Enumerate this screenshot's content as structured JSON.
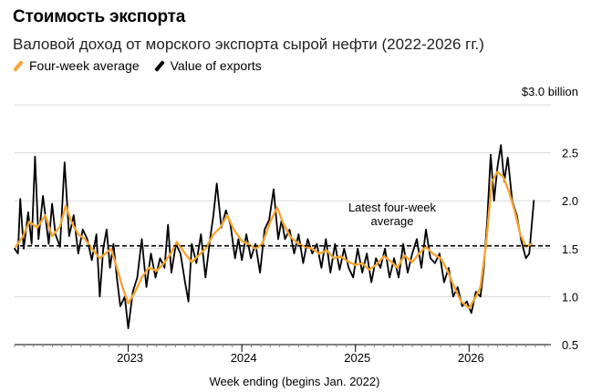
{
  "header": {
    "title": "Стоимость экспорта",
    "subtitle": "Валовой доход от морского экспорта сырой нефти (2022-2026 гг.)"
  },
  "colors": {
    "avg": "#f5a533",
    "value": "#000000",
    "grid": "#d9d9d9",
    "axis": "#000000"
  },
  "chart_data": {
    "type": "line",
    "title": "Стоимость экспорта",
    "subtitle": "Валовой доход от морского экспорта сырой нефти (2022-2026 гг.)",
    "xlabel": "Week ending (begins Jan. 2022)",
    "unit_label": "$3.0 billion",
    "ylabel": "",
    "ylim": [
      0.5,
      3.0
    ],
    "xlim": [
      2022.0,
      2026.72
    ],
    "yticks": [
      {
        "value": 3.0,
        "label": "3.0"
      },
      {
        "value": 2.5,
        "label": "2.5"
      },
      {
        "value": 2.0,
        "label": "2.0"
      },
      {
        "value": 1.5,
        "label": "1.5"
      },
      {
        "value": 1.0,
        "label": "1.0"
      },
      {
        "value": 0.5,
        "label": "0.5"
      }
    ],
    "xticks": [
      {
        "value": 2023,
        "label": "2023"
      },
      {
        "value": 2024,
        "label": "2024"
      },
      {
        "value": 2025,
        "label": "2025"
      },
      {
        "value": 2026,
        "label": "2026"
      }
    ],
    "grid": true,
    "legend_position": "top-left",
    "reference_line": {
      "value": 1.53,
      "label_lines": [
        "Latest four-week",
        "average"
      ]
    },
    "series": [
      {
        "name": "Four-week average",
        "color": "#f5a533",
        "points": [
          [
            2022.01,
            1.52
          ],
          [
            2022.07,
            1.62
          ],
          [
            2022.13,
            1.78
          ],
          [
            2022.2,
            1.72
          ],
          [
            2022.27,
            1.85
          ],
          [
            2022.33,
            1.63
          ],
          [
            2022.4,
            1.73
          ],
          [
            2022.45,
            1.95
          ],
          [
            2022.5,
            1.78
          ],
          [
            2022.56,
            1.65
          ],
          [
            2022.62,
            1.6
          ],
          [
            2022.68,
            1.5
          ],
          [
            2022.75,
            1.4
          ],
          [
            2022.8,
            1.45
          ],
          [
            2022.85,
            1.5
          ],
          [
            2022.9,
            1.3
          ],
          [
            2022.95,
            1.1
          ],
          [
            2023.0,
            0.93
          ],
          [
            2023.06,
            1.05
          ],
          [
            2023.12,
            1.2
          ],
          [
            2023.18,
            1.3
          ],
          [
            2023.25,
            1.27
          ],
          [
            2023.31,
            1.34
          ],
          [
            2023.37,
            1.44
          ],
          [
            2023.43,
            1.57
          ],
          [
            2023.5,
            1.45
          ],
          [
            2023.56,
            1.36
          ],
          [
            2023.62,
            1.43
          ],
          [
            2023.68,
            1.5
          ],
          [
            2023.75,
            1.65
          ],
          [
            2023.81,
            1.72
          ],
          [
            2023.87,
            1.85
          ],
          [
            2023.93,
            1.7
          ],
          [
            2024.0,
            1.58
          ],
          [
            2024.06,
            1.55
          ],
          [
            2024.12,
            1.5
          ],
          [
            2024.18,
            1.55
          ],
          [
            2024.25,
            1.78
          ],
          [
            2024.31,
            1.93
          ],
          [
            2024.37,
            1.75
          ],
          [
            2024.43,
            1.62
          ],
          [
            2024.5,
            1.55
          ],
          [
            2024.56,
            1.52
          ],
          [
            2024.62,
            1.5
          ],
          [
            2024.68,
            1.45
          ],
          [
            2024.75,
            1.48
          ],
          [
            2024.81,
            1.4
          ],
          [
            2024.87,
            1.42
          ],
          [
            2024.93,
            1.37
          ],
          [
            2025.0,
            1.33
          ],
          [
            2025.06,
            1.35
          ],
          [
            2025.12,
            1.28
          ],
          [
            2025.18,
            1.33
          ],
          [
            2025.25,
            1.42
          ],
          [
            2025.31,
            1.37
          ],
          [
            2025.37,
            1.3
          ],
          [
            2025.43,
            1.43
          ],
          [
            2025.5,
            1.36
          ],
          [
            2025.56,
            1.45
          ],
          [
            2025.62,
            1.52
          ],
          [
            2025.68,
            1.45
          ],
          [
            2025.75,
            1.4
          ],
          [
            2025.81,
            1.27
          ],
          [
            2025.87,
            1.1
          ],
          [
            2025.93,
            0.95
          ],
          [
            2026.0,
            0.88
          ],
          [
            2026.06,
            1.0
          ],
          [
            2026.1,
            1.1
          ],
          [
            2026.15,
            1.55
          ],
          [
            2026.2,
            2.2
          ],
          [
            2026.25,
            2.3
          ],
          [
            2026.3,
            2.25
          ],
          [
            2026.35,
            2.1
          ],
          [
            2026.4,
            1.9
          ],
          [
            2026.45,
            1.65
          ],
          [
            2026.5,
            1.52
          ],
          [
            2026.55,
            1.55
          ]
        ]
      },
      {
        "name": "Value of exports",
        "color": "#000000",
        "points": [
          [
            2022.0,
            1.5
          ],
          [
            2022.03,
            1.45
          ],
          [
            2022.05,
            2.02
          ],
          [
            2022.08,
            1.5
          ],
          [
            2022.12,
            1.88
          ],
          [
            2022.15,
            1.55
          ],
          [
            2022.18,
            2.46
          ],
          [
            2022.21,
            1.6
          ],
          [
            2022.25,
            2.05
          ],
          [
            2022.3,
            1.55
          ],
          [
            2022.33,
            1.97
          ],
          [
            2022.36,
            1.65
          ],
          [
            2022.4,
            1.52
          ],
          [
            2022.44,
            2.4
          ],
          [
            2022.48,
            1.63
          ],
          [
            2022.52,
            1.85
          ],
          [
            2022.56,
            1.45
          ],
          [
            2022.6,
            1.7
          ],
          [
            2022.64,
            1.6
          ],
          [
            2022.68,
            1.38
          ],
          [
            2022.72,
            1.65
          ],
          [
            2022.75,
            1.0
          ],
          [
            2022.78,
            1.5
          ],
          [
            2022.81,
            1.7
          ],
          [
            2022.84,
            1.3
          ],
          [
            2022.87,
            1.55
          ],
          [
            2022.9,
            1.2
          ],
          [
            2022.93,
            0.9
          ],
          [
            2022.97,
            1.0
          ],
          [
            2023.0,
            0.67
          ],
          [
            2023.04,
            1.05
          ],
          [
            2023.08,
            1.2
          ],
          [
            2023.12,
            1.6
          ],
          [
            2023.16,
            1.1
          ],
          [
            2023.2,
            1.45
          ],
          [
            2023.24,
            1.2
          ],
          [
            2023.28,
            1.4
          ],
          [
            2023.32,
            1.3
          ],
          [
            2023.35,
            1.75
          ],
          [
            2023.38,
            1.25
          ],
          [
            2023.42,
            1.55
          ],
          [
            2023.46,
            1.45
          ],
          [
            2023.5,
            1.15
          ],
          [
            2023.53,
            0.95
          ],
          [
            2023.56,
            1.55
          ],
          [
            2023.6,
            1.35
          ],
          [
            2023.64,
            1.65
          ],
          [
            2023.68,
            1.2
          ],
          [
            2023.72,
            1.6
          ],
          [
            2023.75,
            1.85
          ],
          [
            2023.78,
            2.18
          ],
          [
            2023.82,
            1.72
          ],
          [
            2023.86,
            1.9
          ],
          [
            2023.9,
            1.75
          ],
          [
            2023.94,
            1.4
          ],
          [
            2023.97,
            1.6
          ],
          [
            2024.0,
            1.38
          ],
          [
            2024.04,
            1.65
          ],
          [
            2024.08,
            1.4
          ],
          [
            2024.12,
            1.55
          ],
          [
            2024.16,
            1.25
          ],
          [
            2024.2,
            1.7
          ],
          [
            2024.24,
            1.8
          ],
          [
            2024.28,
            2.12
          ],
          [
            2024.32,
            1.6
          ],
          [
            2024.35,
            1.8
          ],
          [
            2024.38,
            1.6
          ],
          [
            2024.42,
            1.7
          ],
          [
            2024.46,
            1.45
          ],
          [
            2024.5,
            1.65
          ],
          [
            2024.54,
            1.35
          ],
          [
            2024.58,
            1.6
          ],
          [
            2024.62,
            1.45
          ],
          [
            2024.66,
            1.55
          ],
          [
            2024.7,
            1.3
          ],
          [
            2024.74,
            1.6
          ],
          [
            2024.78,
            1.25
          ],
          [
            2024.82,
            1.55
          ],
          [
            2024.86,
            1.28
          ],
          [
            2024.9,
            1.5
          ],
          [
            2024.94,
            1.3
          ],
          [
            2024.98,
            1.2
          ],
          [
            2025.02,
            1.5
          ],
          [
            2025.06,
            1.25
          ],
          [
            2025.1,
            1.45
          ],
          [
            2025.14,
            1.15
          ],
          [
            2025.18,
            1.4
          ],
          [
            2025.22,
            1.3
          ],
          [
            2025.26,
            1.5
          ],
          [
            2025.3,
            1.2
          ],
          [
            2025.34,
            1.4
          ],
          [
            2025.38,
            1.2
          ],
          [
            2025.42,
            1.55
          ],
          [
            2025.46,
            1.25
          ],
          [
            2025.5,
            1.45
          ],
          [
            2025.54,
            1.6
          ],
          [
            2025.58,
            1.3
          ],
          [
            2025.62,
            1.7
          ],
          [
            2025.66,
            1.4
          ],
          [
            2025.7,
            1.35
          ],
          [
            2025.74,
            1.45
          ],
          [
            2025.78,
            1.15
          ],
          [
            2025.82,
            1.3
          ],
          [
            2025.86,
            1.0
          ],
          [
            2025.9,
            1.1
          ],
          [
            2025.94,
            0.9
          ],
          [
            2025.98,
            0.95
          ],
          [
            2026.02,
            0.83
          ],
          [
            2026.06,
            1.05
          ],
          [
            2026.1,
            1.0
          ],
          [
            2026.13,
            1.3
          ],
          [
            2026.16,
            1.8
          ],
          [
            2026.19,
            2.48
          ],
          [
            2026.22,
            2.0
          ],
          [
            2026.25,
            2.35
          ],
          [
            2026.28,
            2.58
          ],
          [
            2026.31,
            2.2
          ],
          [
            2026.34,
            2.45
          ],
          [
            2026.38,
            2.0
          ],
          [
            2026.42,
            1.85
          ],
          [
            2026.46,
            1.58
          ],
          [
            2026.5,
            1.4
          ],
          [
            2026.53,
            1.45
          ],
          [
            2026.57,
            2.0
          ]
        ]
      }
    ]
  }
}
